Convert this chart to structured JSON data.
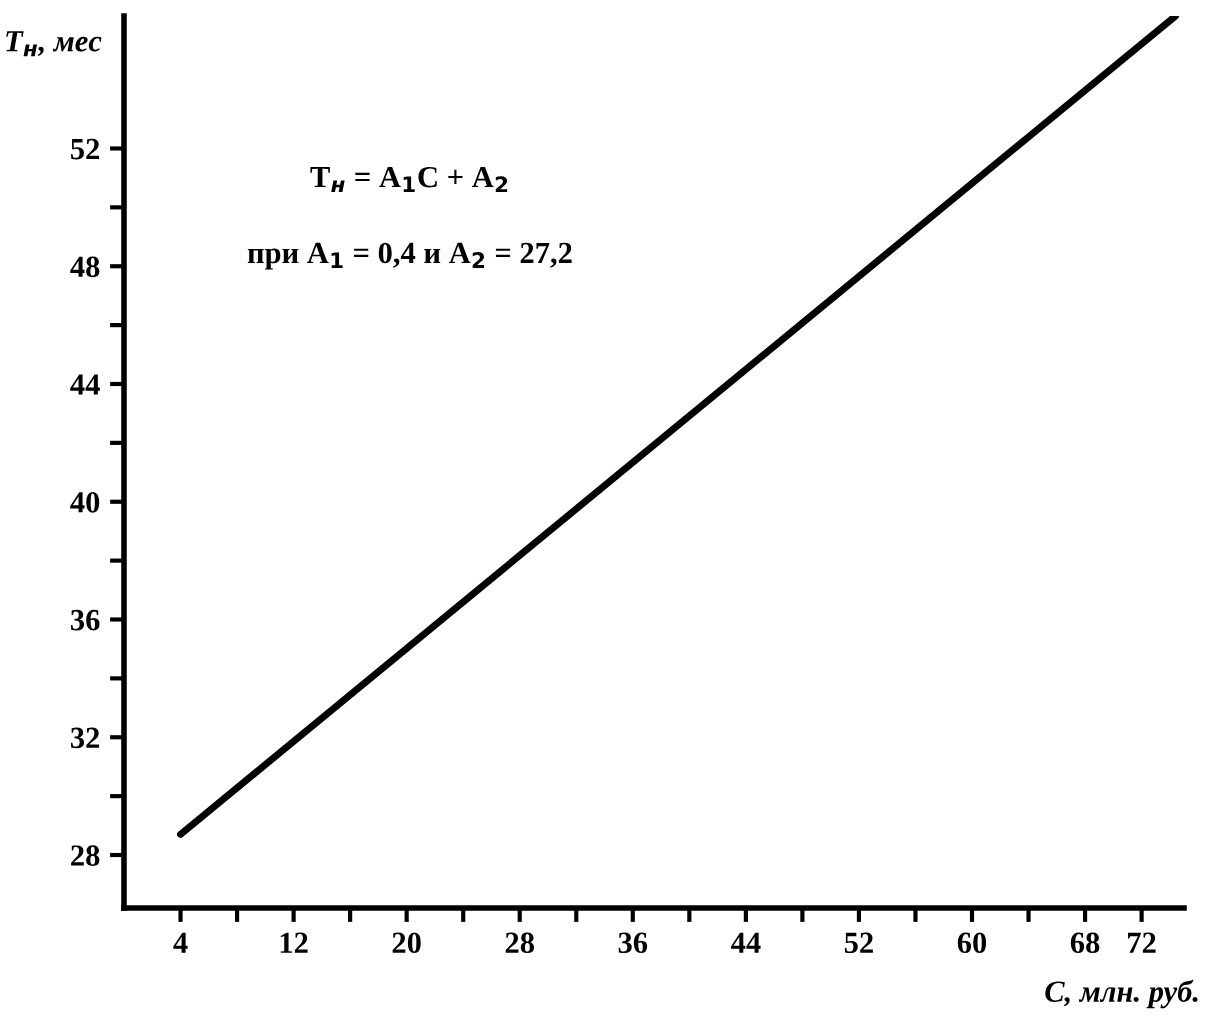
{
  "chart_data": {
    "type": "line",
    "xlabel": "C, млн. руб.",
    "ylabel": "T$_{н}$, мес",
    "annotations": [
      "T$_{н}$ = A$_{1}$C + A$_{2}$",
      "при A$_{1}$ = 0,4 и A$_{2}$ = 27,2"
    ],
    "x": [
      4,
      74.4
    ],
    "series": [
      {
        "color": "#000000",
        "values": [
          28.7,
          56.5
        ]
      }
    ],
    "xlim": [
      0,
      75
    ],
    "ylim": [
      26.2,
      56.5
    ],
    "xticks": [
      4,
      {
        "value": 8,
        "label": null
      },
      12,
      {
        "value": 16,
        "label": null
      },
      20,
      {
        "value": 24,
        "label": null
      },
      28,
      {
        "value": 32,
        "label": null
      },
      36,
      {
        "value": 40,
        "label": null
      },
      44,
      {
        "value": 48,
        "label": null
      },
      52,
      {
        "value": 56,
        "label": null
      },
      60,
      {
        "value": 64,
        "label": null
      },
      68,
      72
    ],
    "yticks": [
      28,
      {
        "value": 30,
        "label": null
      },
      32,
      {
        "value": 34,
        "label": null
      },
      36,
      {
        "value": 38,
        "label": null
      },
      40,
      {
        "value": 42,
        "label": null
      },
      44,
      {
        "value": 46,
        "label": null
      },
      48,
      {
        "value": 50,
        "label": null
      },
      52
    ],
    "grid": false,
    "legend": false,
    "marker": "none",
    "line_style": "solid"
  }
}
